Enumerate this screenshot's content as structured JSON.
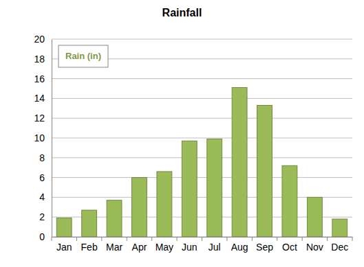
{
  "chart_data": {
    "type": "bar",
    "title": "Rainfall",
    "categories": [
      "Jan",
      "Feb",
      "Mar",
      "Apr",
      "May",
      "Jun",
      "Jul",
      "Aug",
      "Sep",
      "Oct",
      "Nov",
      "Dec"
    ],
    "series": [
      {
        "name": "Rain (in)",
        "color": "#9bbb59",
        "values": [
          1.9,
          2.7,
          3.7,
          6.0,
          6.6,
          9.7,
          9.9,
          15.1,
          13.3,
          7.2,
          4.0,
          1.8
        ]
      }
    ],
    "ylim": [
      0,
      20
    ],
    "yticks": [
      0,
      2,
      4,
      6,
      8,
      10,
      12,
      14,
      16,
      18,
      20
    ],
    "grid": true,
    "legend": "top-left"
  }
}
